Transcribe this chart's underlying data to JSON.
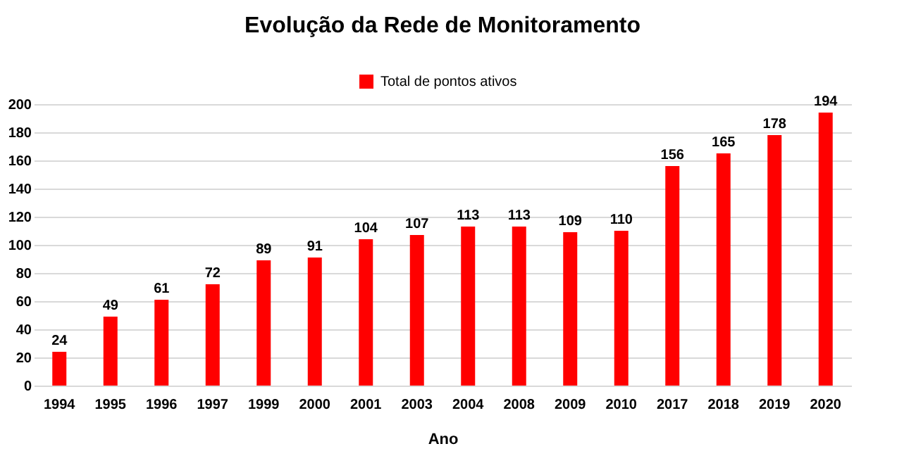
{
  "chart_data": {
    "type": "bar",
    "title": "Evolução da Rede de Monitoramento",
    "xlabel": "Ano",
    "categories": [
      "1994",
      "1995",
      "1996",
      "1997",
      "1999",
      "2000",
      "2001",
      "2003",
      "2004",
      "2008",
      "2009",
      "2010",
      "2017",
      "2018",
      "2019",
      "2020"
    ],
    "series": [
      {
        "name": "Total de pontos ativos",
        "color": "#ff0000",
        "values": [
          24,
          49,
          61,
          72,
          89,
          91,
          104,
          107,
          113,
          113,
          109,
          110,
          156,
          165,
          178,
          194
        ]
      }
    ],
    "ylim": [
      0,
      200
    ],
    "yticks": [
      0,
      20,
      40,
      60,
      80,
      100,
      120,
      140,
      160,
      180,
      200
    ],
    "grid": "y",
    "legend": "top",
    "data_labels": true
  }
}
